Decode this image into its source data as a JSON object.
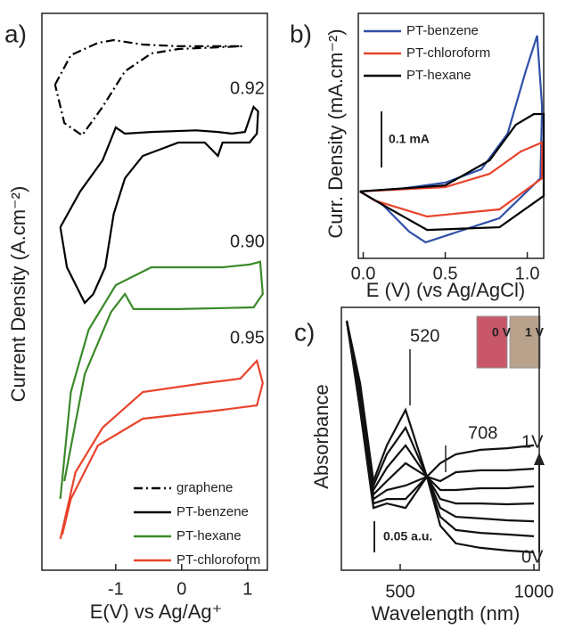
{
  "chart_data": [
    {
      "type": "line",
      "panel_label": "a)",
      "x_label": "E(V) vs Ag/Ag⁺",
      "y_label": "Current Density (A.cm⁻²)",
      "xlim": [
        -2.12,
        1.3
      ],
      "ylim": [
        0,
        100
      ],
      "xticks": [
        -1,
        0,
        1
      ],
      "annotations": [
        "0.92",
        "0.90",
        "0.95"
      ],
      "series": [
        {
          "name": "graphene",
          "color": "#000000",
          "style": "dash-dot",
          "x": [
            -1.92,
            -1.68,
            -1.27,
            -1.03,
            -0.59,
            -0.05,
            0.92,
            -0.05,
            -0.46,
            -0.86,
            -1.2,
            -1.51,
            -1.78,
            -1.92
          ],
          "values": [
            87.2,
            92.5,
            94.7,
            95.2,
            94.4,
            94.1,
            94.1,
            93.6,
            92.8,
            89.6,
            83.2,
            78.1,
            80.3,
            87.2
          ]
        },
        {
          "name": "PT-benzene",
          "color": "#000000",
          "style": "solid",
          "x": [
            -1.84,
            -1.54,
            -1.2,
            -1.0,
            -0.86,
            -0.46,
            0.22,
            0.55,
            0.76,
            0.96,
            1.09,
            1.16,
            1.14,
            1.03,
            0.62,
            0.55,
            0.35,
            -0.05,
            -0.59,
            -0.86,
            -1.03,
            -1.16,
            -1.34,
            -1.47,
            -1.74,
            -1.84
          ],
          "values": [
            61.6,
            68,
            73.6,
            79.5,
            78.4,
            78.7,
            79,
            78.7,
            78.4,
            78.7,
            83.2,
            82.4,
            78.4,
            76.8,
            76.8,
            74.4,
            76.8,
            76.8,
            74.4,
            70.4,
            64,
            54.4,
            49.6,
            48,
            54.4,
            61.6
          ]
        },
        {
          "name": "PT-hexane",
          "color": "#3a8a2a",
          "style": "solid",
          "x": [
            -1.84,
            -1.68,
            -1.41,
            -1.0,
            -0.46,
            0.62,
            1.03,
            1.19,
            1.23,
            1.09,
            -0.05,
            -0.73,
            -0.86,
            -1.07,
            -1.47,
            -1.78
          ],
          "values": [
            12.8,
            32,
            43.2,
            51.2,
            54.4,
            54.4,
            54.9,
            55.4,
            49.6,
            47.2,
            46.9,
            46.9,
            49.6,
            46.4,
            35.2,
            16
          ]
        },
        {
          "name": "PT-chloroform",
          "color": "#e8432c",
          "style": "solid",
          "x": [
            -1.84,
            -1.61,
            -1.2,
            -0.59,
            0.35,
            0.89,
            1.14,
            1.23,
            1.14,
            0.62,
            -0.59,
            -1.27,
            -1.68,
            -1.81
          ],
          "values": [
            5.6,
            17.6,
            25.6,
            32,
            33.6,
            34.4,
            37.6,
            33.6,
            29.6,
            28.8,
            27.2,
            22.4,
            12.8,
            6.4
          ]
        }
      ]
    },
    {
      "type": "line",
      "panel_label": "b)",
      "x_label": "E (V) (vs Ag/AgCl)",
      "y_label": "Curr. Density (mA.cm⁻²)",
      "xlim": [
        -0.03,
        1.1
      ],
      "ylim": [
        0,
        100
      ],
      "xticks": [
        {
          "value": 0,
          "label": "0.0"
        },
        0.5,
        {
          "value": 1,
          "label": "1.0"
        }
      ],
      "annotations": [
        "0.1 mA"
      ],
      "series": [
        {
          "name": "PT-benzene",
          "color": "#3050a8",
          "x": [
            -0.02,
            0.23,
            0.5,
            0.72,
            0.88,
            0.99,
            1.06,
            1.09,
            1.08,
            0.83,
            0.61,
            0.38,
            0.28,
            0.12,
            -0.02
          ],
          "values": [
            27.3,
            28.4,
            30.9,
            36.4,
            50.9,
            76.4,
            90.9,
            61.8,
            32.7,
            16.4,
            11.6,
            6.5,
            10.9,
            21.8,
            27.3
          ]
        },
        {
          "name": "PT-chloroform",
          "color": "#e8432c",
          "x": [
            -0.02,
            0.5,
            0.77,
            0.96,
            1.09,
            1.09,
            0.83,
            0.39,
            0.07,
            -0.02
          ],
          "values": [
            27.3,
            29.1,
            34.5,
            43.6,
            47.3,
            32.7,
            20,
            17.1,
            23.6,
            27.3
          ]
        },
        {
          "name": "PT-hexane",
          "color": "#000000",
          "x": [
            -0.02,
            0.5,
            0.77,
            0.93,
            1.04,
            1.1,
            1.1,
            0.83,
            0.39,
            0.12,
            -0.02
          ],
          "values": [
            27.3,
            29.8,
            40,
            54.5,
            58.9,
            58.9,
            25.5,
            12.7,
            11.6,
            21.8,
            27.3
          ]
        }
      ]
    },
    {
      "type": "line",
      "panel_label": "c)",
      "x_label": "Wavelength (nm)",
      "y_label": "Absorbance",
      "xlim": [
        280,
        1020
      ],
      "ylim": [
        0,
        100
      ],
      "xticks": [
        500,
        1000
      ],
      "annotations": [
        "520",
        "708",
        "1V",
        "0V",
        "0.05 a.u.",
        "0 V",
        "1 V"
      ],
      "x": [
        300,
        350,
        400,
        450,
        520,
        600,
        650,
        708,
        800,
        900,
        1000
      ],
      "series": [
        {
          "color": "#111111",
          "values": [
            94.9,
            71.2,
            33.9,
            47.5,
            61.0,
            35.6,
            16.9,
            10.2,
            8.5,
            7.5,
            6.8
          ]
        },
        {
          "color": "#111111",
          "values": [
            94.9,
            69.5,
            32.2,
            44.1,
            54.2,
            35.6,
            20.3,
            15.3,
            14.2,
            13.6,
            12.9
          ]
        },
        {
          "color": "#111111",
          "values": [
            94.9,
            67.8,
            30.5,
            39.0,
            47.5,
            35.6,
            23.7,
            20.3,
            19.7,
            19.0,
            18.6
          ]
        },
        {
          "color": "#111111",
          "values": [
            94.9,
            66.1,
            28.8,
            33.9,
            40.7,
            35.6,
            27.1,
            25.4,
            25.4,
            25.1,
            25.4
          ]
        },
        {
          "color": "#111111",
          "values": [
            94.9,
            64.4,
            27.1,
            30.5,
            32.2,
            35.6,
            30.5,
            30.5,
            31.2,
            31.2,
            31.9
          ]
        },
        {
          "color": "#111111",
          "values": [
            94.9,
            62.7,
            25.4,
            27.1,
            27.1,
            35.6,
            33.9,
            37.3,
            38.0,
            38.0,
            38.6
          ]
        },
        {
          "color": "#111111",
          "values": [
            94.9,
            61.0,
            23.7,
            25.4,
            23.7,
            35.6,
            40.7,
            44.1,
            45.8,
            46.4,
            47.5
          ]
        }
      ]
    }
  ]
}
